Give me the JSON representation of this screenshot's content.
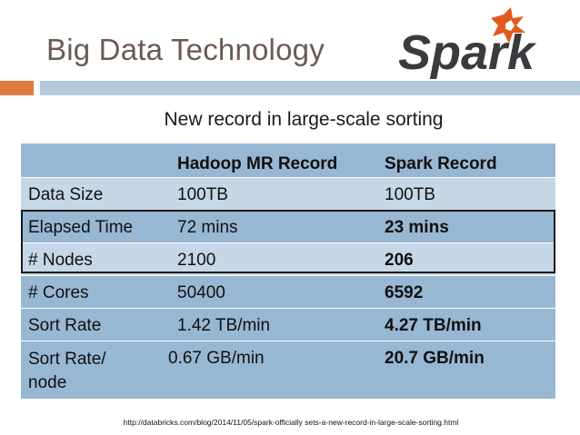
{
  "slide": {
    "title": "Big Data Technology",
    "logo_text": "Spark",
    "subtitle": "New record in large-scale sorting",
    "source_url": "http://databricks.com/blog/2014/11/05/spark-officially sets-a-new-record-in-large-scale-sorting.html"
  },
  "table": {
    "headers": [
      "",
      "Hadoop MR Record",
      "Spark Record"
    ],
    "rows": [
      [
        "Data Size",
        "100TB",
        "100TB"
      ],
      [
        "Elapsed Time",
        "72 mins",
        "23 mins"
      ],
      [
        "# Nodes",
        "2100",
        "206"
      ],
      [
        "# Cores",
        "50400",
        "6592"
      ],
      [
        "Sort Rate",
        "1.42 TB/min",
        "4.27 TB/min"
      ],
      [
        "Sort Rate/ node",
        "0.67 GB/min",
        "20.7 GB/min"
      ]
    ]
  },
  "colors": {
    "title_text": "#6b5a53",
    "accent_orange": "#e07b3f",
    "rule_blue": "#b3c9dd",
    "row_dark": "#98b7d3",
    "row_light": "#c6d7e7",
    "logo_star": "#e25a1c",
    "logo_text": "#3c3a3e"
  },
  "icons": {
    "logo": "spark-logo-star"
  }
}
